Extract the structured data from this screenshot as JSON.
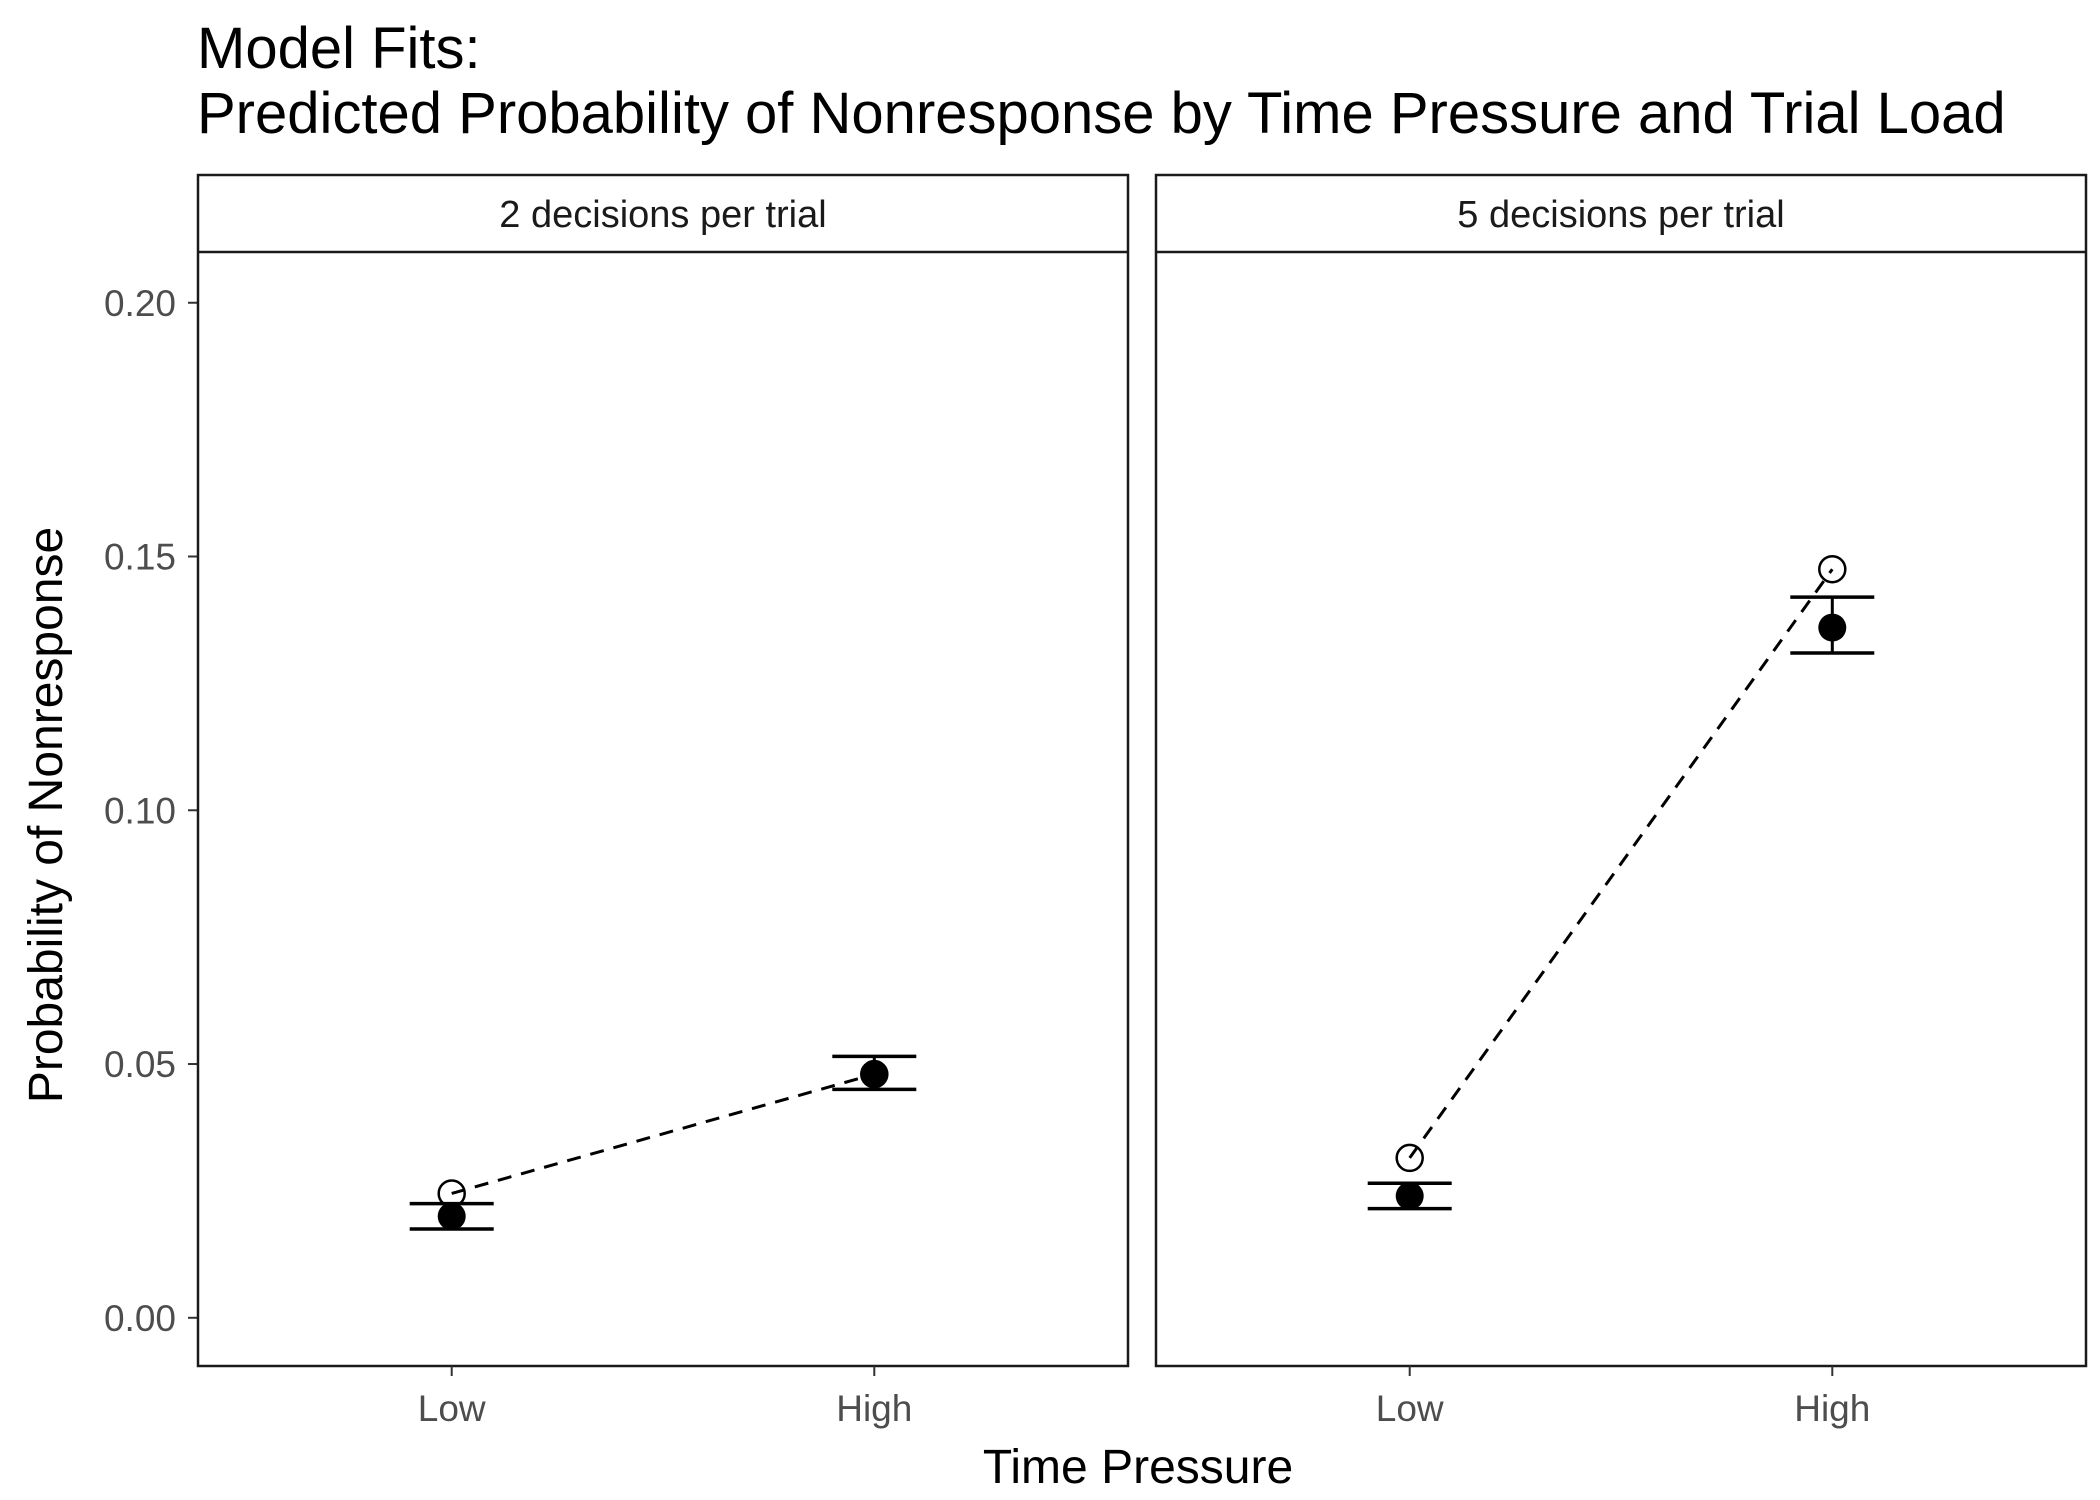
{
  "chart_data": {
    "type": "scatter",
    "title_line1": "Model Fits:",
    "title_line2": "Predicted Probability of Nonresponse by Time Pressure and Trial Load",
    "xlabel": "Time Pressure",
    "ylabel": "Probability of Nonresponse",
    "categories": [
      "Low",
      "High"
    ],
    "ylim": [
      -0.0095,
      0.21
    ],
    "yticks": [
      0.0,
      0.05,
      0.1,
      0.15,
      0.2
    ],
    "ytick_labels": [
      "0.00",
      "0.05",
      "0.10",
      "0.15",
      "0.20"
    ],
    "grid": false,
    "panels": [
      {
        "label": "2 decisions per trial",
        "observed": [
          {
            "x": "Low",
            "y": 0.02,
            "lower": 0.0175,
            "upper": 0.0225
          },
          {
            "x": "High",
            "y": 0.048,
            "lower": 0.045,
            "upper": 0.0515
          }
        ],
        "predicted": [
          {
            "x": "Low",
            "y": 0.0245
          },
          {
            "x": "High",
            "y": 0.048
          }
        ]
      },
      {
        "label": "5 decisions per trial",
        "observed": [
          {
            "x": "Low",
            "y": 0.024,
            "lower": 0.0215,
            "upper": 0.0265
          },
          {
            "x": "High",
            "y": 0.136,
            "lower": 0.131,
            "upper": 0.142
          }
        ],
        "predicted": [
          {
            "x": "Low",
            "y": 0.0315
          },
          {
            "x": "High",
            "y": 0.1475
          }
        ]
      }
    ]
  }
}
